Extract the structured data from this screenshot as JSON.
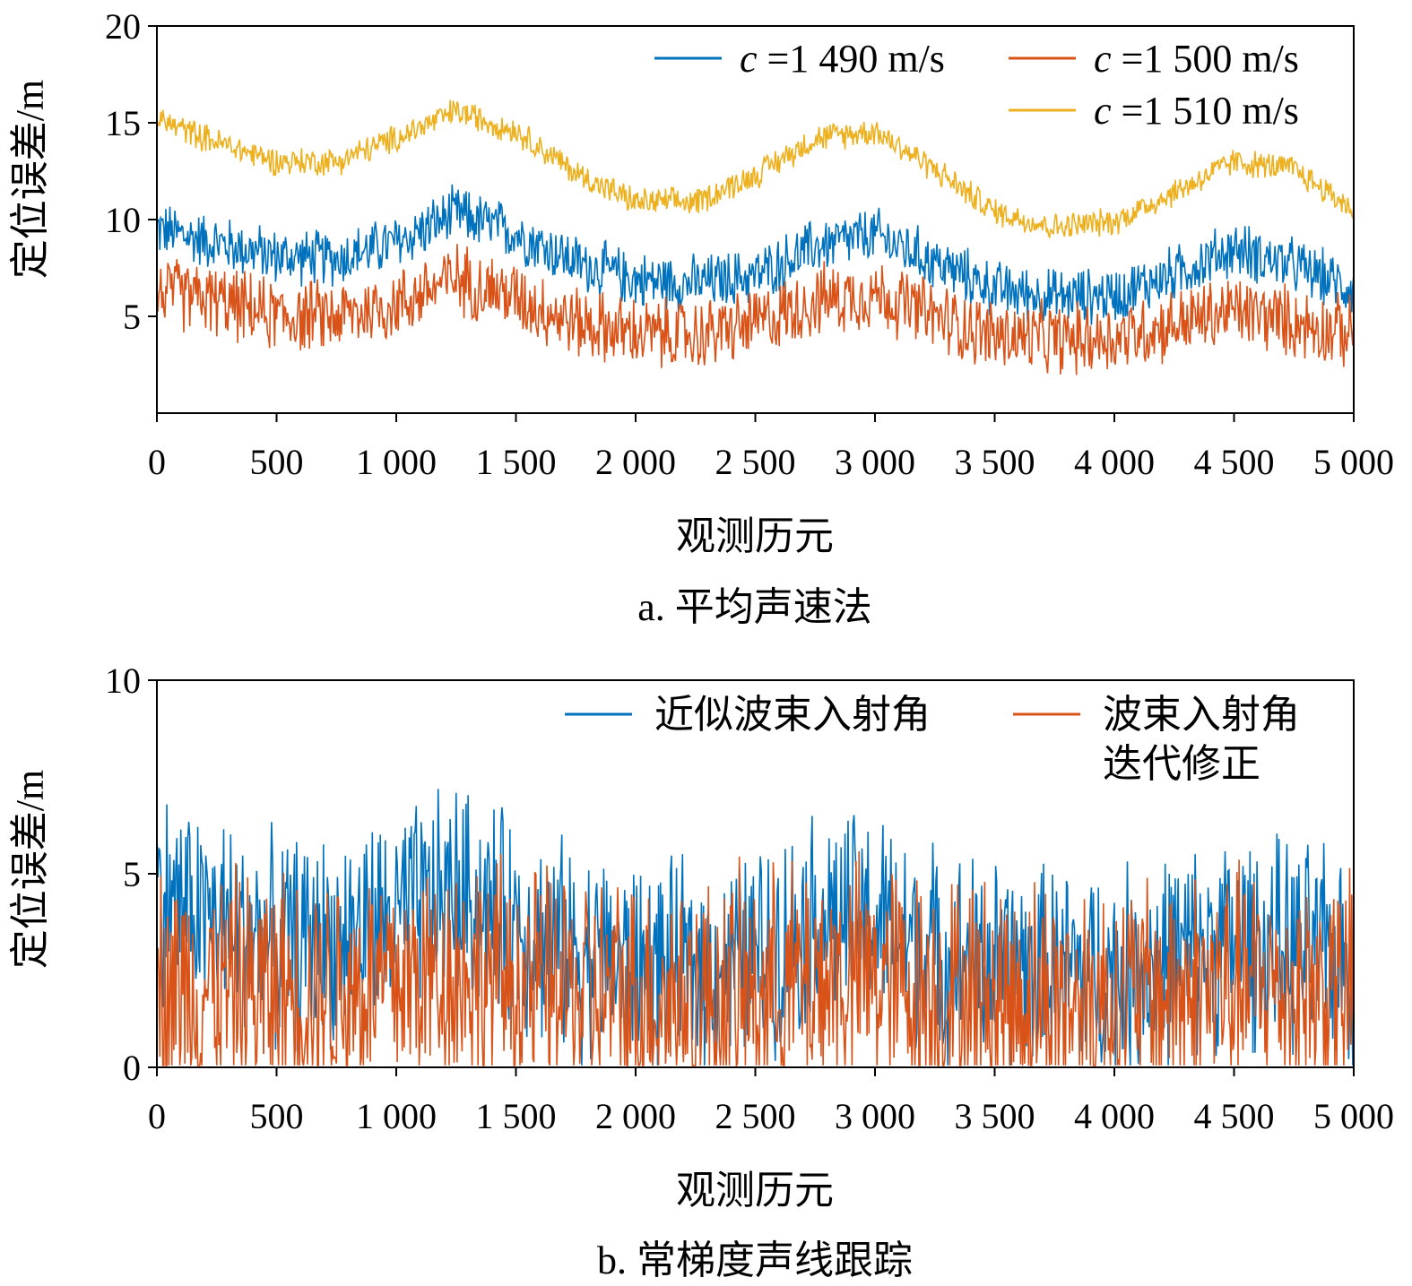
{
  "chart_data": [
    {
      "type": "line",
      "caption": "a. 平均声速法",
      "xlabel": "观测历元",
      "ylabel": "定位误差/m",
      "xlim": [
        0,
        5000
      ],
      "ylim": [
        0,
        20
      ],
      "x_ticks": [
        "0",
        "500",
        "1 000",
        "1 500",
        "2 000",
        "2 500",
        "3 000",
        "3 500",
        "4 000",
        "4 500",
        "5 000"
      ],
      "y_ticks": [
        "5",
        "10",
        "15",
        "20"
      ],
      "y_tick_values": [
        5,
        10,
        15,
        20
      ],
      "legend": "top-right",
      "grid": false,
      "x": [
        0,
        250,
        500,
        750,
        1000,
        1250,
        1500,
        1750,
        2000,
        2250,
        2500,
        2750,
        3000,
        3250,
        3500,
        3750,
        4000,
        4250,
        4500,
        4750,
        5000
      ],
      "series": [
        {
          "name": "c =1 490 m/s",
          "name_italic": "c",
          "name_rest": " =1 490 m/s",
          "color": "#0072BD",
          "noise": 1.4,
          "values": [
            9.5,
            8.8,
            8.1,
            8.0,
            8.8,
            10.3,
            9.3,
            7.8,
            6.9,
            6.7,
            7.1,
            8.6,
            9.2,
            7.8,
            6.4,
            6.0,
            6.1,
            7.2,
            8.5,
            7.6,
            6.4
          ]
        },
        {
          "name": "c =1 500 m/s",
          "name_italic": "c",
          "name_rest": " =1 500 m/s",
          "color": "#D95319",
          "noise": 1.8,
          "values": [
            6.3,
            5.8,
            5.0,
            5.0,
            5.6,
            7.0,
            6.0,
            4.7,
            4.1,
            4.0,
            4.6,
            5.8,
            6.2,
            5.0,
            4.0,
            3.8,
            3.9,
            4.6,
            5.3,
            4.7,
            4.1
          ]
        },
        {
          "name": "c =1 510 m/s",
          "name_italic": "c",
          "name_rest": " =1 510 m/s",
          "color": "#EDB120",
          "noise": 0.7,
          "values": [
            15.2,
            14.0,
            13.0,
            13.0,
            14.2,
            15.6,
            14.6,
            12.4,
            10.9,
            10.9,
            12.3,
            14.2,
            14.6,
            12.6,
            10.4,
            9.6,
            9.9,
            11.4,
            13.0,
            12.6,
            10.5
          ]
        }
      ]
    },
    {
      "type": "line",
      "caption": "b. 常梯度声线跟踪",
      "xlabel": "观测历元",
      "ylabel": "定位误差/m",
      "xlim": [
        0,
        5000
      ],
      "ylim": [
        0,
        10
      ],
      "x_ticks": [
        "0",
        "500",
        "1 000",
        "1 500",
        "2 000",
        "2 500",
        "3 000",
        "3 500",
        "4 000",
        "4 500",
        "5 000"
      ],
      "y_ticks": [
        "0",
        "5",
        "10"
      ],
      "y_tick_values": [
        0,
        5,
        10
      ],
      "legend": "top-right",
      "grid": false,
      "x": [
        0,
        250,
        500,
        750,
        1000,
        1250,
        1500,
        1750,
        2000,
        2250,
        2500,
        2750,
        3000,
        3250,
        3500,
        3750,
        4000,
        4250,
        4500,
        4750,
        5000
      ],
      "series": [
        {
          "name": "近似波束入射角",
          "name_lines": [
            "近似波束入射角"
          ],
          "color": "#0072BD",
          "noise": 2.6,
          "values": [
            4.5,
            3.8,
            3.2,
            3.3,
            3.8,
            4.6,
            3.7,
            3.0,
            2.6,
            2.5,
            2.9,
            3.9,
            3.8,
            3.0,
            2.6,
            2.5,
            2.4,
            2.9,
            3.3,
            3.1,
            2.7
          ]
        },
        {
          "name": "波束入射角迭代修正",
          "name_lines": [
            "波束入射角",
            "迭代修正"
          ],
          "color": "#D95319",
          "noise": 3.0,
          "values": [
            2.1,
            2.0,
            2.0,
            2.0,
            2.2,
            2.5,
            2.2,
            1.9,
            1.8,
            1.8,
            1.9,
            2.3,
            2.3,
            1.9,
            1.8,
            1.8,
            1.8,
            1.9,
            2.1,
            2.0,
            1.9
          ]
        }
      ]
    }
  ]
}
